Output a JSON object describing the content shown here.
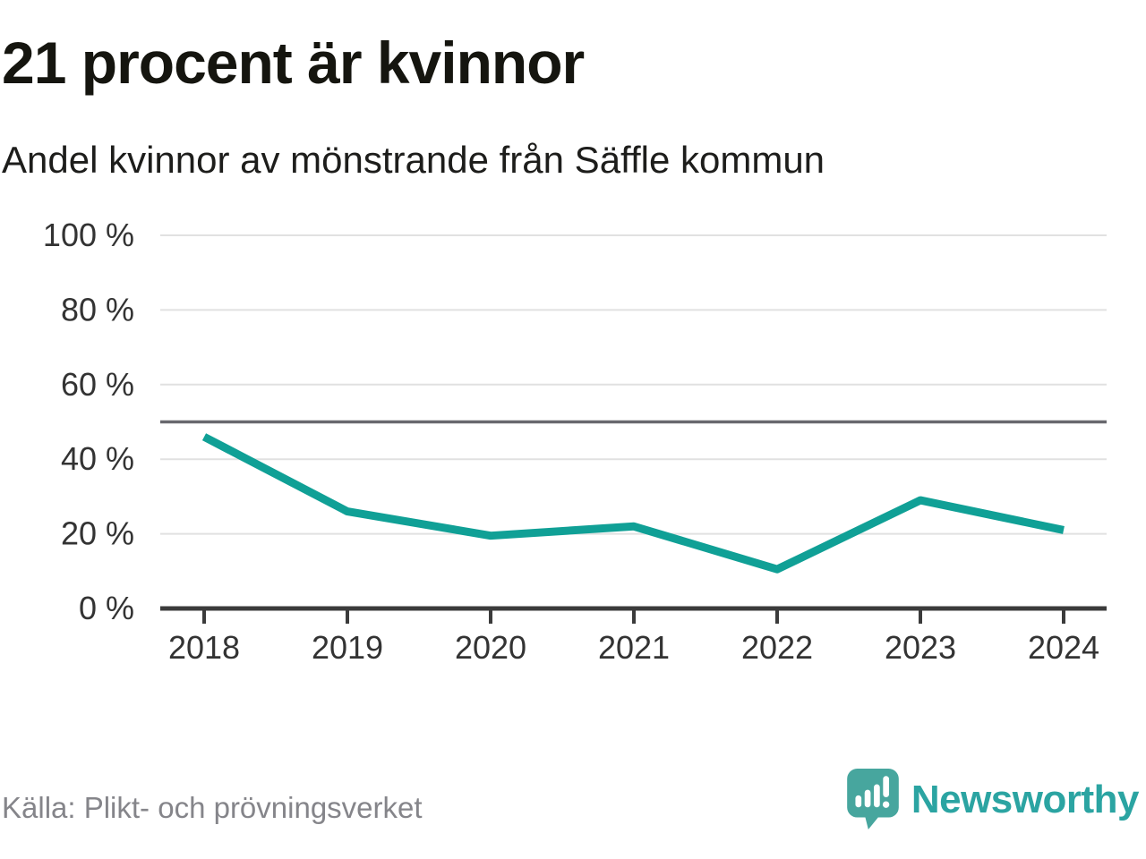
{
  "header": {
    "title": "21 procent är kvinnor",
    "subtitle": "Andel kvinnor av mönstrande från Säffle kommun"
  },
  "chart_data": {
    "type": "line",
    "title": "21 procent är kvinnor",
    "subtitle": "Andel kvinnor av mönstrande från Säffle kommun",
    "categories": [
      "2018",
      "2019",
      "2020",
      "2021",
      "2022",
      "2023",
      "2024"
    ],
    "series": [
      {
        "name": "Andel kvinnor av mönstrande",
        "values": [
          46,
          26,
          19.5,
          22,
          10.5,
          29,
          21
        ]
      }
    ],
    "unit": "%",
    "ylim": [
      0,
      100
    ],
    "yticks": [
      0,
      20,
      40,
      60,
      80,
      100
    ],
    "ytick_labels": [
      "0 %",
      "20 %",
      "40 %",
      "60 %",
      "80 %",
      "100 %"
    ],
    "reference_line": 50,
    "grid": true,
    "legend_position": "none",
    "line_color": "#10a096",
    "gridline_color": "#e1e1e1",
    "reference_line_color": "#68686e",
    "axis_color": "#3b3b3b",
    "tick_label_color": "#333333"
  },
  "footer": {
    "source": "Källa: Plikt- och prövningsverket",
    "brand": "Newsworthy",
    "brand_color": "#2ba4a2",
    "logo_bubble_color": "#47a69e"
  }
}
